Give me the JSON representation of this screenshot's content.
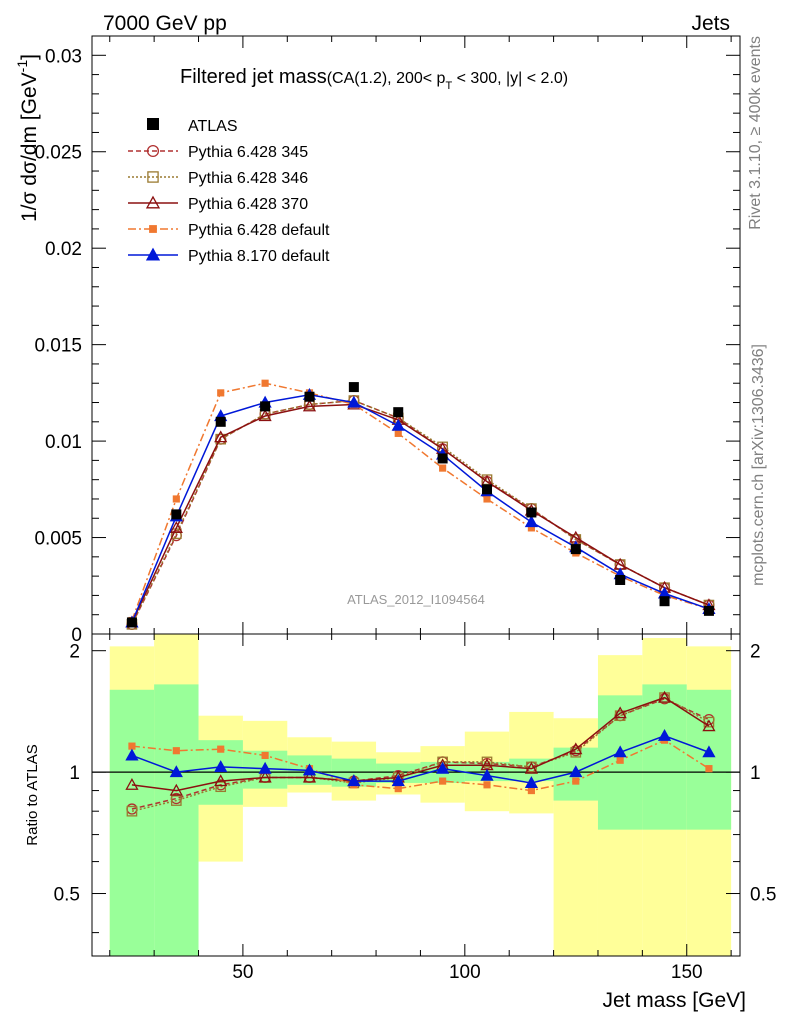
{
  "header": {
    "left": "7000 GeV pp",
    "right": "Jets"
  },
  "title": {
    "main": "Filtered jet mass",
    "cuts": "(CA(1.2), 200< p",
    "cuts_sub": "T",
    "cuts_rest": " < 300, |y| < 2.0)"
  },
  "side_labels": {
    "rivet": "Rivet 3.1.10, ≥ 400k events",
    "mcplots": "mcplots.cern.ch [arXiv:1306.3436]"
  },
  "watermark": "ATLAS_2012_I1094564",
  "chart_data": {
    "type": "line",
    "xlabel": "Jet mass [GeV]",
    "ylabel": "1/σ dσ/dm [GeV",
    "ylabel_sup": "-1",
    "ylabel_end": "]",
    "ratio_ylabel": "Ratio to ATLAS",
    "xlim": [
      16,
      162
    ],
    "ylim": [
      0,
      0.031
    ],
    "ratio_ylim": [
      0.35,
      2.2
    ],
    "x_ticks": [
      "50",
      "100",
      "150"
    ],
    "y_ticks": [
      "0",
      "0.005",
      "0.01",
      "0.015",
      "0.02",
      "0.025",
      "0.03"
    ],
    "ratio_ticks": [
      "0.5",
      "1",
      "2"
    ],
    "bin_edges": [
      20,
      30,
      40,
      50,
      60,
      70,
      80,
      90,
      100,
      110,
      120,
      130,
      140,
      150,
      160
    ],
    "x": [
      25,
      35,
      45,
      55,
      65,
      75,
      85,
      95,
      105,
      115,
      125,
      135,
      145,
      155
    ],
    "data": {
      "name": "ATLAS",
      "values": [
        0.0006,
        0.0062,
        0.011,
        0.0118,
        0.0123,
        0.0128,
        0.0115,
        0.0091,
        0.0075,
        0.0063,
        0.0044,
        0.0028,
        0.0017,
        0.0012
      ]
    },
    "bands": {
      "green_ratio": [
        [
          0.35,
          1.6
        ],
        [
          0.35,
          1.65
        ],
        [
          0.83,
          1.2
        ],
        [
          0.91,
          1.13
        ],
        [
          0.93,
          1.1
        ],
        [
          0.92,
          1.08
        ],
        [
          0.94,
          1.05
        ],
        [
          0.94,
          1.06
        ],
        [
          0.95,
          1.06
        ],
        [
          0.95,
          1.08
        ],
        [
          0.85,
          1.15
        ],
        [
          0.72,
          1.55
        ],
        [
          0.72,
          1.65
        ],
        [
          0.72,
          1.6
        ]
      ],
      "yellow_ratio": [
        [
          0.35,
          2.05
        ],
        [
          0.58,
          2.2
        ],
        [
          0.6,
          1.38
        ],
        [
          0.82,
          1.34
        ],
        [
          0.89,
          1.22
        ],
        [
          0.85,
          1.19
        ],
        [
          0.88,
          1.12
        ],
        [
          0.84,
          1.16
        ],
        [
          0.8,
          1.26
        ],
        [
          0.79,
          1.41
        ],
        [
          0.35,
          1.36
        ],
        [
          0.35,
          1.95
        ],
        [
          0.35,
          2.15
        ],
        [
          0.35,
          2.05
        ]
      ]
    },
    "series": [
      {
        "name": "Pythia 6.428 345",
        "color": "#b03030",
        "dash": "5,3",
        "marker": "circle-open",
        "values": [
          0.0005,
          0.0051,
          0.0101,
          0.0114,
          0.0119,
          0.0121,
          0.0112,
          0.0096,
          0.0079,
          0.0065,
          0.0049,
          0.0036,
          0.0024,
          0.0015
        ],
        "ratio": [
          0.81,
          0.86,
          0.93,
          0.97,
          0.97,
          0.95,
          0.98,
          1.06,
          1.05,
          1.03,
          1.13,
          1.38,
          1.52,
          1.35
        ]
      },
      {
        "name": "Pythia 6.428 346",
        "color": "#9a7a30",
        "dash": "2,2",
        "marker": "square-open",
        "values": [
          0.0005,
          0.0052,
          0.0101,
          0.0114,
          0.0119,
          0.0121,
          0.0112,
          0.0097,
          0.008,
          0.0065,
          0.0049,
          0.0036,
          0.0024,
          0.0015
        ],
        "ratio": [
          0.8,
          0.85,
          0.92,
          0.97,
          0.97,
          0.94,
          0.97,
          1.06,
          1.06,
          1.03,
          1.12,
          1.38,
          1.53,
          1.33
        ]
      },
      {
        "name": "Pythia 6.428 370",
        "color": "#8b1010",
        "dash": "",
        "marker": "triangle-open",
        "values": [
          0.0006,
          0.0055,
          0.0102,
          0.0113,
          0.0118,
          0.0119,
          0.0111,
          0.0096,
          0.0079,
          0.0064,
          0.005,
          0.0036,
          0.0024,
          0.0015
        ],
        "ratio": [
          0.93,
          0.9,
          0.95,
          0.97,
          0.97,
          0.95,
          0.97,
          1.04,
          1.04,
          1.02,
          1.14,
          1.4,
          1.53,
          1.3
        ]
      },
      {
        "name": "Pythia 6.428 default",
        "color": "#f07830",
        "dash": "8,3,2,3",
        "marker": "square-filled",
        "values": [
          0.0007,
          0.007,
          0.0125,
          0.013,
          0.0125,
          0.0119,
          0.0104,
          0.0086,
          0.007,
          0.0055,
          0.0042,
          0.003,
          0.002,
          0.0013
        ],
        "ratio": [
          1.16,
          1.13,
          1.14,
          1.1,
          1.02,
          0.93,
          0.91,
          0.95,
          0.93,
          0.9,
          0.95,
          1.07,
          1.2,
          1.02
        ]
      },
      {
        "name": "Pythia 8.170 default",
        "color": "#0018d8",
        "dash": "",
        "marker": "triangle-filled",
        "values": [
          0.0006,
          0.0061,
          0.0113,
          0.012,
          0.0124,
          0.012,
          0.0108,
          0.0093,
          0.0074,
          0.0058,
          0.0045,
          0.0031,
          0.0021,
          0.0013
        ],
        "ratio": [
          1.1,
          1.0,
          1.03,
          1.02,
          1.01,
          0.95,
          0.95,
          1.02,
          0.98,
          0.94,
          1.0,
          1.12,
          1.23,
          1.12
        ]
      }
    ]
  }
}
